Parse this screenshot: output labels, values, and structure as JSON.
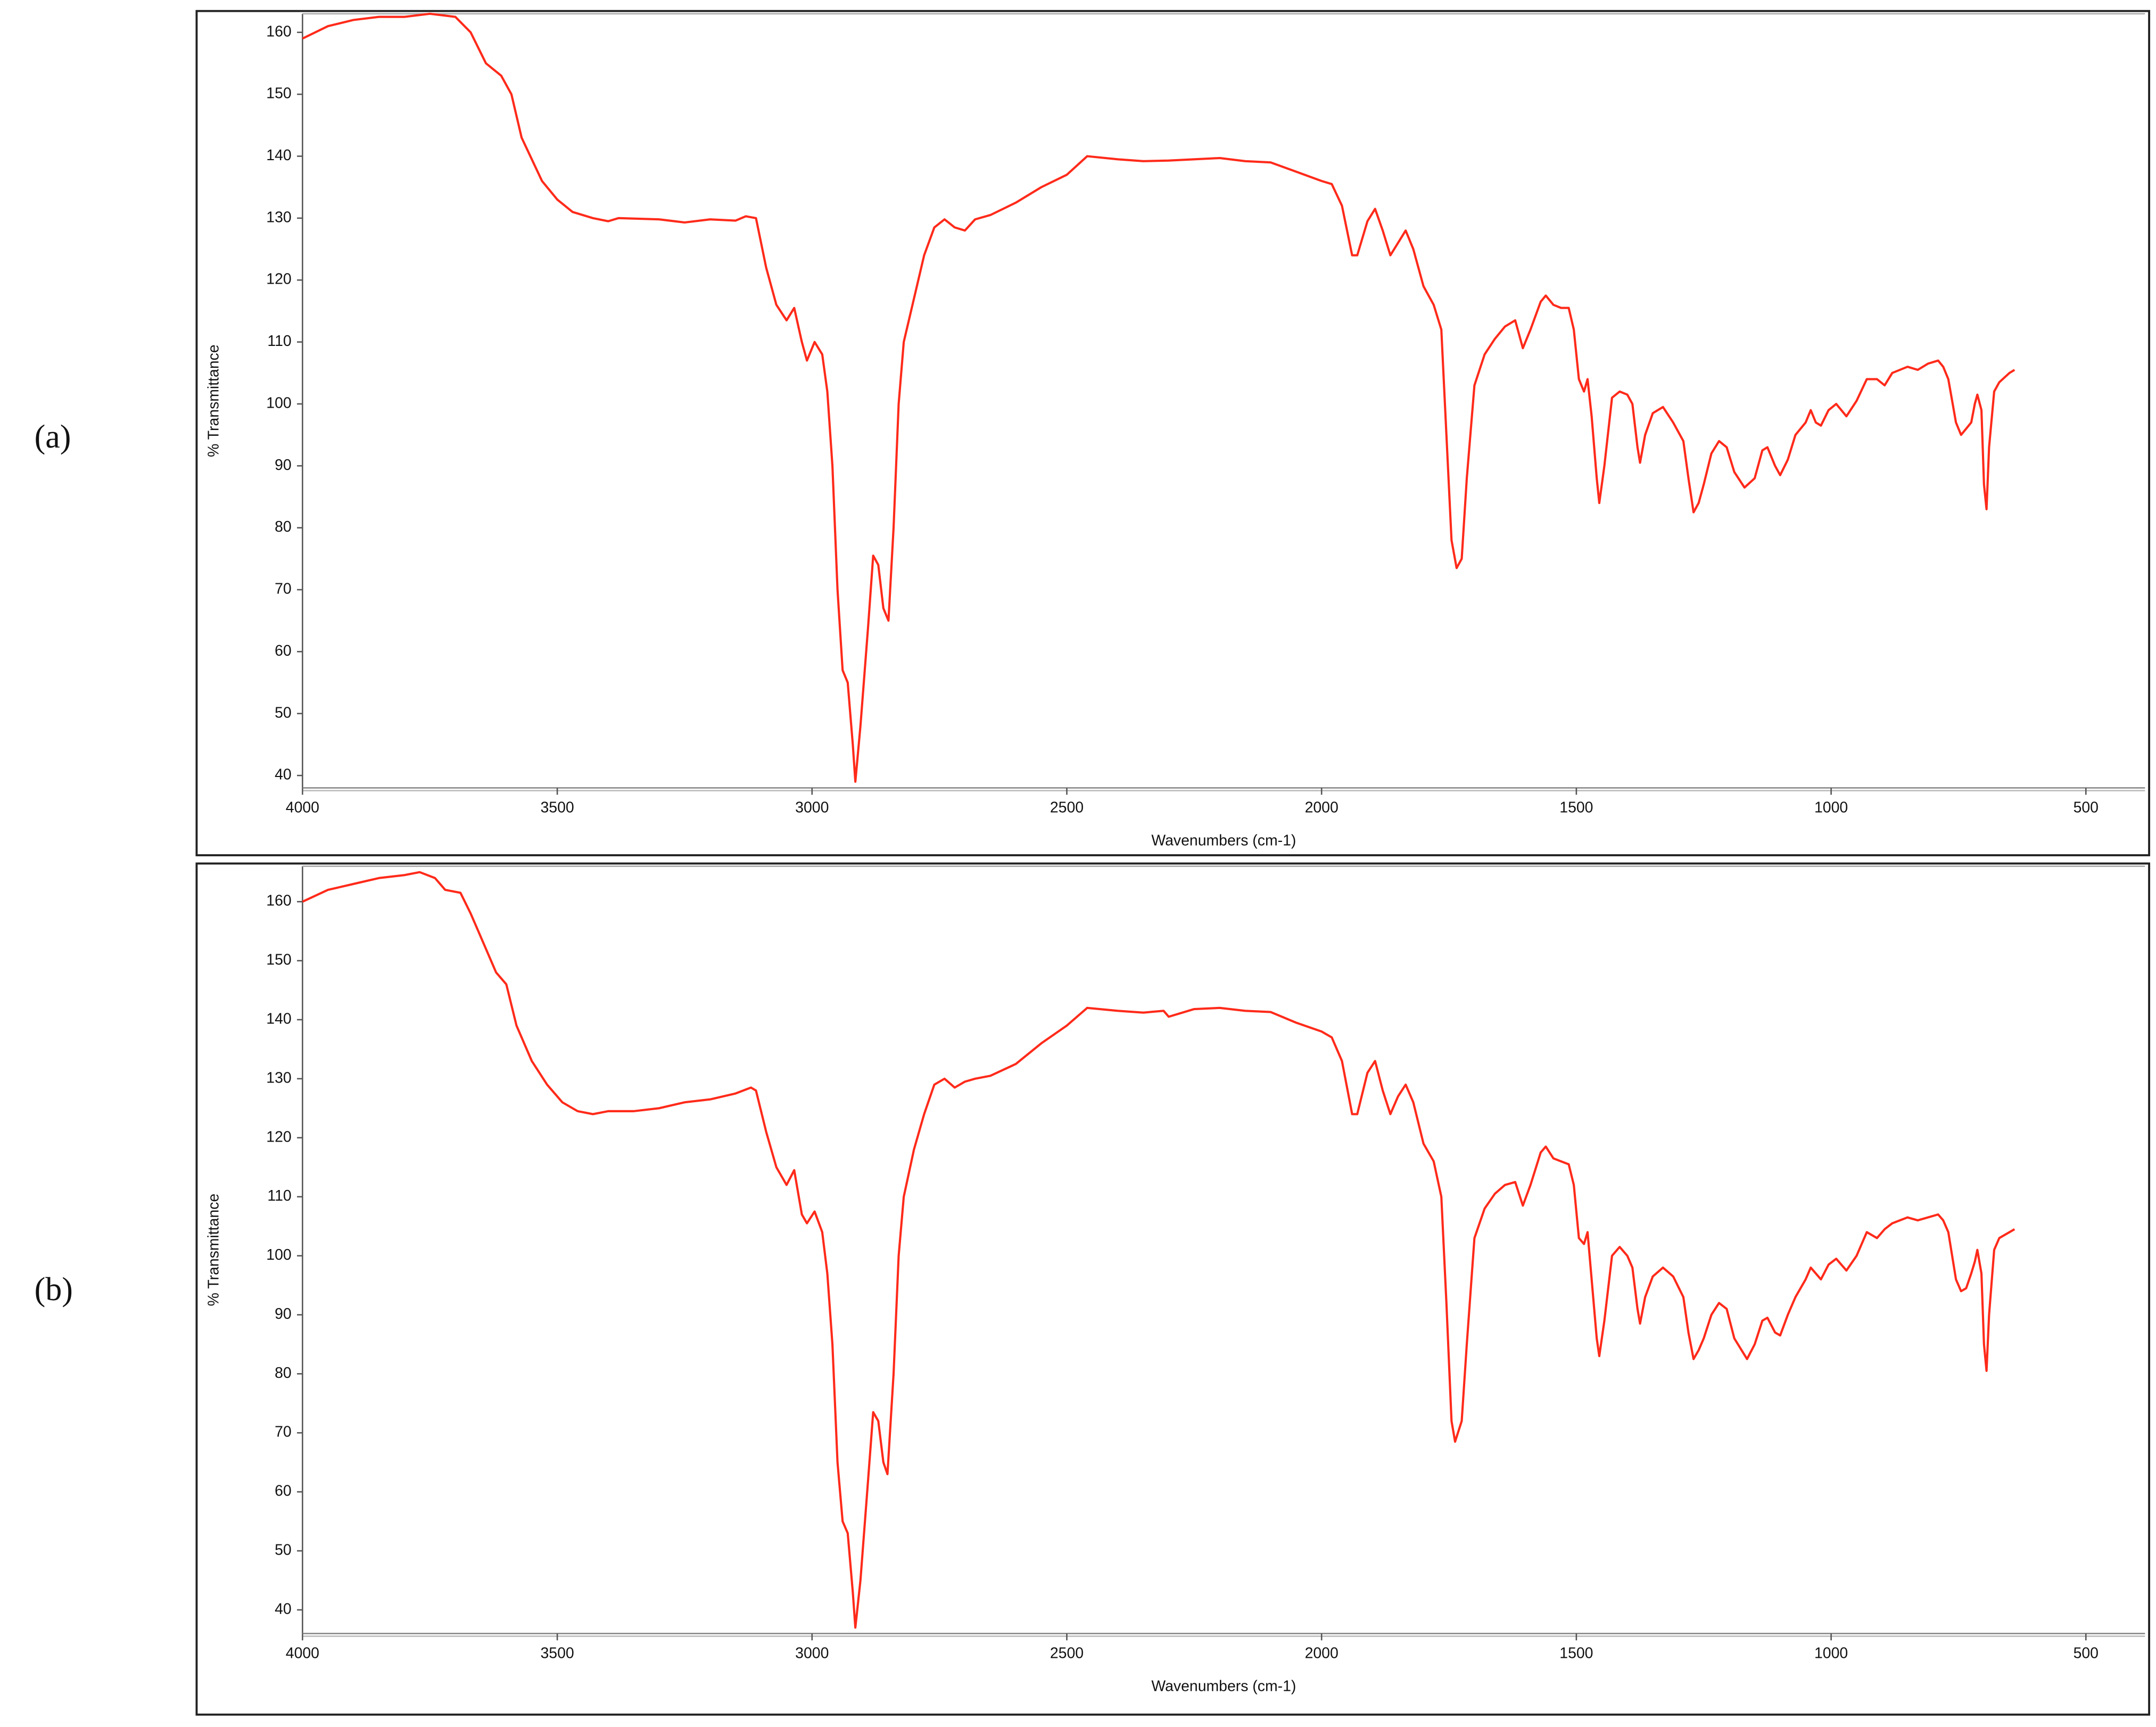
{
  "chart_data": [
    {
      "type": "line",
      "title": "(a)",
      "x_label": "Wavenumbers (cm-1)",
      "y_label": "% Transmittance",
      "color": "#ff2a1a",
      "xlim": [
        4000,
        384
      ],
      "ylim": [
        38,
        163
      ],
      "xticks": [
        4000,
        3500,
        3000,
        2500,
        2000,
        1500,
        1000,
        500
      ],
      "yticks": [
        40,
        50,
        60,
        70,
        80,
        90,
        100,
        110,
        120,
        130,
        140,
        150,
        160
      ],
      "x": [
        4000,
        3950,
        3900,
        3850,
        3800,
        3750,
        3700,
        3670,
        3640,
        3610,
        3590,
        3570,
        3530,
        3500,
        3470,
        3430,
        3400,
        3380,
        3300,
        3250,
        3200,
        3150,
        3130,
        3110,
        3090,
        3070,
        3050,
        3035,
        3020,
        3010,
        2995,
        2980,
        2970,
        2960,
        2950,
        2940,
        2930,
        2920,
        2915,
        2905,
        2890,
        2880,
        2870,
        2860,
        2850,
        2840,
        2830,
        2820,
        2800,
        2780,
        2760,
        2740,
        2720,
        2700,
        2680,
        2650,
        2600,
        2550,
        2500,
        2460,
        2400,
        2350,
        2300,
        2250,
        2200,
        2150,
        2100,
        2050,
        2000,
        1980,
        1960,
        1940,
        1930,
        1910,
        1895,
        1880,
        1865,
        1850,
        1835,
        1820,
        1800,
        1780,
        1765,
        1755,
        1745,
        1735,
        1725,
        1715,
        1700,
        1680,
        1660,
        1640,
        1620,
        1605,
        1590,
        1570,
        1560,
        1545,
        1530,
        1515,
        1505,
        1495,
        1485,
        1478,
        1470,
        1460,
        1455,
        1445,
        1430,
        1415,
        1400,
        1390,
        1380,
        1375,
        1365,
        1350,
        1330,
        1310,
        1290,
        1280,
        1270,
        1260,
        1250,
        1235,
        1220,
        1205,
        1190,
        1170,
        1150,
        1135,
        1125,
        1110,
        1100,
        1085,
        1070,
        1050,
        1040,
        1030,
        1020,
        1005,
        990,
        970,
        950,
        930,
        910,
        895,
        880,
        850,
        830,
        810,
        790,
        780,
        770,
        755,
        745,
        735,
        725,
        718,
        713,
        705,
        700,
        695,
        690,
        680,
        670,
        650,
        640
      ],
      "values": [
        159,
        161,
        162,
        162.5,
        162.5,
        163,
        162.5,
        160,
        155,
        153,
        150,
        143,
        136,
        133,
        131,
        130,
        129.5,
        130,
        129.8,
        129.3,
        129.8,
        129.6,
        130.3,
        130,
        122,
        116,
        113.5,
        115.5,
        110,
        107,
        110,
        108,
        102,
        90,
        70,
        57,
        55,
        45,
        39,
        48,
        64,
        75.5,
        74,
        67,
        65,
        80,
        100,
        110,
        117,
        124,
        128.5,
        129.8,
        128.5,
        128,
        129.8,
        130.5,
        132.5,
        135,
        137,
        140,
        139.5,
        139.2,
        139.3,
        139.5,
        139.7,
        139.2,
        139,
        137.5,
        136,
        135.5,
        132,
        124,
        124,
        129.5,
        131.5,
        128,
        124,
        126,
        128,
        125,
        119,
        116,
        112,
        95,
        78,
        73.5,
        75,
        88,
        103,
        108,
        110.5,
        112.5,
        113.5,
        109,
        112,
        116.5,
        117.5,
        116,
        115.5,
        115.5,
        112,
        104,
        102,
        104,
        98,
        88,
        84,
        90,
        101,
        102,
        101.5,
        100,
        93,
        90.5,
        95,
        98.5,
        99.5,
        97,
        94,
        88,
        82.5,
        84,
        87,
        92,
        94,
        93,
        89,
        86.5,
        88,
        92.5,
        93,
        90,
        88.5,
        91,
        95,
        97,
        99,
        97,
        96.5,
        99,
        100,
        98,
        100.5,
        104,
        104,
        103,
        105,
        106,
        105.5,
        106.5,
        107,
        106,
        104,
        97,
        95,
        96,
        97,
        100,
        101.5,
        99,
        87,
        83,
        93,
        102,
        103.5,
        105,
        105.5
      ]
    },
    {
      "type": "line",
      "title": "(b)",
      "x_label": "Wavenumbers (cm-1)",
      "y_label": "% Transmittance",
      "color": "#ff2a1a",
      "xlim": [
        4000,
        384
      ],
      "ylim": [
        36,
        166
      ],
      "xticks": [
        4000,
        3500,
        3000,
        2500,
        2000,
        1500,
        1000,
        500
      ],
      "yticks": [
        40,
        50,
        60,
        70,
        80,
        90,
        100,
        110,
        120,
        130,
        140,
        150,
        160
      ],
      "x": [
        4000,
        3950,
        3900,
        3850,
        3800,
        3770,
        3740,
        3720,
        3690,
        3670,
        3640,
        3620,
        3600,
        3580,
        3550,
        3520,
        3490,
        3460,
        3430,
        3400,
        3350,
        3300,
        3250,
        3200,
        3150,
        3120,
        3110,
        3090,
        3070,
        3050,
        3035,
        3020,
        3010,
        2995,
        2980,
        2970,
        2960,
        2950,
        2940,
        2930,
        2920,
        2915,
        2905,
        2890,
        2880,
        2870,
        2860,
        2852,
        2840,
        2830,
        2820,
        2800,
        2780,
        2760,
        2740,
        2720,
        2700,
        2680,
        2650,
        2600,
        2550,
        2500,
        2460,
        2400,
        2350,
        2310,
        2300,
        2250,
        2200,
        2150,
        2100,
        2050,
        2000,
        1980,
        1960,
        1940,
        1930,
        1910,
        1895,
        1880,
        1865,
        1850,
        1835,
        1820,
        1800,
        1780,
        1765,
        1755,
        1745,
        1738,
        1725,
        1715,
        1700,
        1680,
        1660,
        1640,
        1620,
        1605,
        1590,
        1570,
        1560,
        1545,
        1530,
        1515,
        1505,
        1495,
        1485,
        1478,
        1470,
        1460,
        1455,
        1445,
        1430,
        1415,
        1400,
        1390,
        1380,
        1375,
        1365,
        1350,
        1330,
        1310,
        1290,
        1280,
        1270,
        1260,
        1250,
        1235,
        1220,
        1205,
        1190,
        1165,
        1150,
        1135,
        1125,
        1110,
        1100,
        1085,
        1070,
        1050,
        1040,
        1030,
        1020,
        1005,
        990,
        970,
        950,
        930,
        910,
        895,
        880,
        850,
        830,
        810,
        790,
        780,
        770,
        755,
        745,
        735,
        725,
        718,
        713,
        705,
        700,
        695,
        690,
        680,
        670,
        650,
        640
      ],
      "values": [
        160,
        162,
        163,
        164,
        164.5,
        165,
        164,
        162,
        161.5,
        158,
        152,
        148,
        146,
        139,
        133,
        129,
        126,
        124.5,
        124,
        124.5,
        124.5,
        125,
        126,
        126.5,
        127.5,
        128.5,
        128,
        121,
        115,
        112,
        114.5,
        107,
        105.5,
        107.5,
        104,
        97,
        85,
        65,
        55,
        53,
        43,
        37,
        45,
        62,
        73.5,
        72,
        65,
        63,
        80,
        100,
        110,
        118,
        124,
        129,
        130,
        128.5,
        129.5,
        130,
        130.5,
        132.5,
        136,
        139,
        142,
        141.5,
        141.2,
        141.5,
        140.5,
        141.8,
        142,
        141.5,
        141.3,
        139.5,
        138,
        137,
        133,
        124,
        124,
        131,
        133,
        128,
        124,
        127,
        129,
        126,
        119,
        116,
        110,
        92,
        72,
        68.5,
        72,
        85,
        103,
        108,
        110.5,
        112,
        112.5,
        108.5,
        112,
        117.5,
        118.5,
        116.5,
        116,
        115.5,
        112,
        103,
        102,
        104,
        96,
        86,
        83,
        89,
        100,
        101.5,
        100,
        98,
        91,
        88.5,
        93,
        96.5,
        98,
        96.5,
        93,
        87,
        82.5,
        84,
        86,
        90,
        92,
        91,
        86,
        82.5,
        85,
        89,
        89.5,
        87,
        86.5,
        90,
        93,
        96,
        98,
        97,
        96,
        98.5,
        99.5,
        97.5,
        100,
        104,
        103,
        104.5,
        105.5,
        106.5,
        106,
        106.5,
        107,
        106,
        104,
        96,
        94,
        94.5,
        97,
        99,
        101,
        97,
        85,
        80.5,
        90,
        101,
        103,
        104,
        104.5
      ]
    }
  ]
}
